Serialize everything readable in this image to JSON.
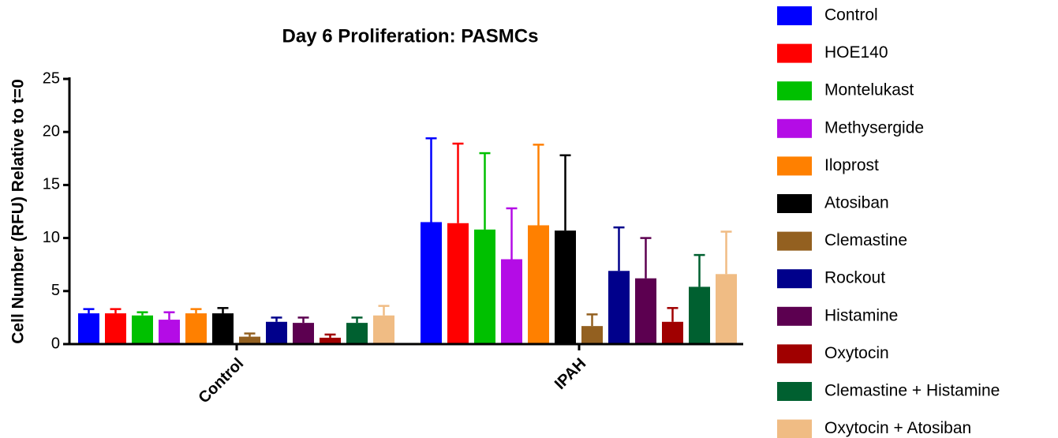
{
  "chart_data": {
    "type": "bar",
    "title": "Day 6 Proliferation: PASMCs",
    "ylabel": "Cell Number (RFU)  Relative to t=0",
    "categories": [
      "Control",
      "IPAH"
    ],
    "ylim": [
      0,
      25
    ],
    "yticks": [
      0,
      5,
      10,
      15,
      20,
      25
    ],
    "legend": "right",
    "series": [
      {
        "name": "Control",
        "color": "#0000ff",
        "values": [
          2.9,
          11.5
        ],
        "errors": [
          0.4,
          7.9
        ]
      },
      {
        "name": "HOE140",
        "color": "#ff0000",
        "values": [
          2.9,
          11.4
        ],
        "errors": [
          0.4,
          7.5
        ]
      },
      {
        "name": "Montelukast",
        "color": "#00c000",
        "values": [
          2.7,
          10.8
        ],
        "errors": [
          0.3,
          7.2
        ]
      },
      {
        "name": "Methysergide",
        "color": "#b40ce6",
        "values": [
          2.3,
          8.0
        ],
        "errors": [
          0.7,
          4.8
        ]
      },
      {
        "name": "Iloprost",
        "color": "#ff8000",
        "values": [
          2.9,
          11.2
        ],
        "errors": [
          0.4,
          7.6
        ]
      },
      {
        "name": "Atosiban",
        "color": "#000000",
        "values": [
          2.9,
          10.7
        ],
        "errors": [
          0.5,
          7.1
        ]
      },
      {
        "name": "Clemastine",
        "color": "#936020",
        "values": [
          0.7,
          1.7
        ],
        "errors": [
          0.3,
          1.1
        ]
      },
      {
        "name": "Rockout",
        "color": "#00008b",
        "values": [
          2.1,
          6.9
        ],
        "errors": [
          0.4,
          4.1
        ]
      },
      {
        "name": "Histamine",
        "color": "#5c0050",
        "values": [
          2.0,
          6.2
        ],
        "errors": [
          0.5,
          3.8
        ]
      },
      {
        "name": "Oxytocin",
        "color": "#a00000",
        "values": [
          0.6,
          2.1
        ],
        "errors": [
          0.3,
          1.3
        ]
      },
      {
        "name": "Clemastine + Histamine",
        "color": "#006030",
        "values": [
          2.0,
          5.4
        ],
        "errors": [
          0.5,
          3.0
        ]
      },
      {
        "name": "Oxytocin + Atosiban",
        "color": "#f0bc84",
        "values": [
          2.7,
          6.6
        ],
        "errors": [
          0.9,
          4.0
        ]
      }
    ]
  }
}
